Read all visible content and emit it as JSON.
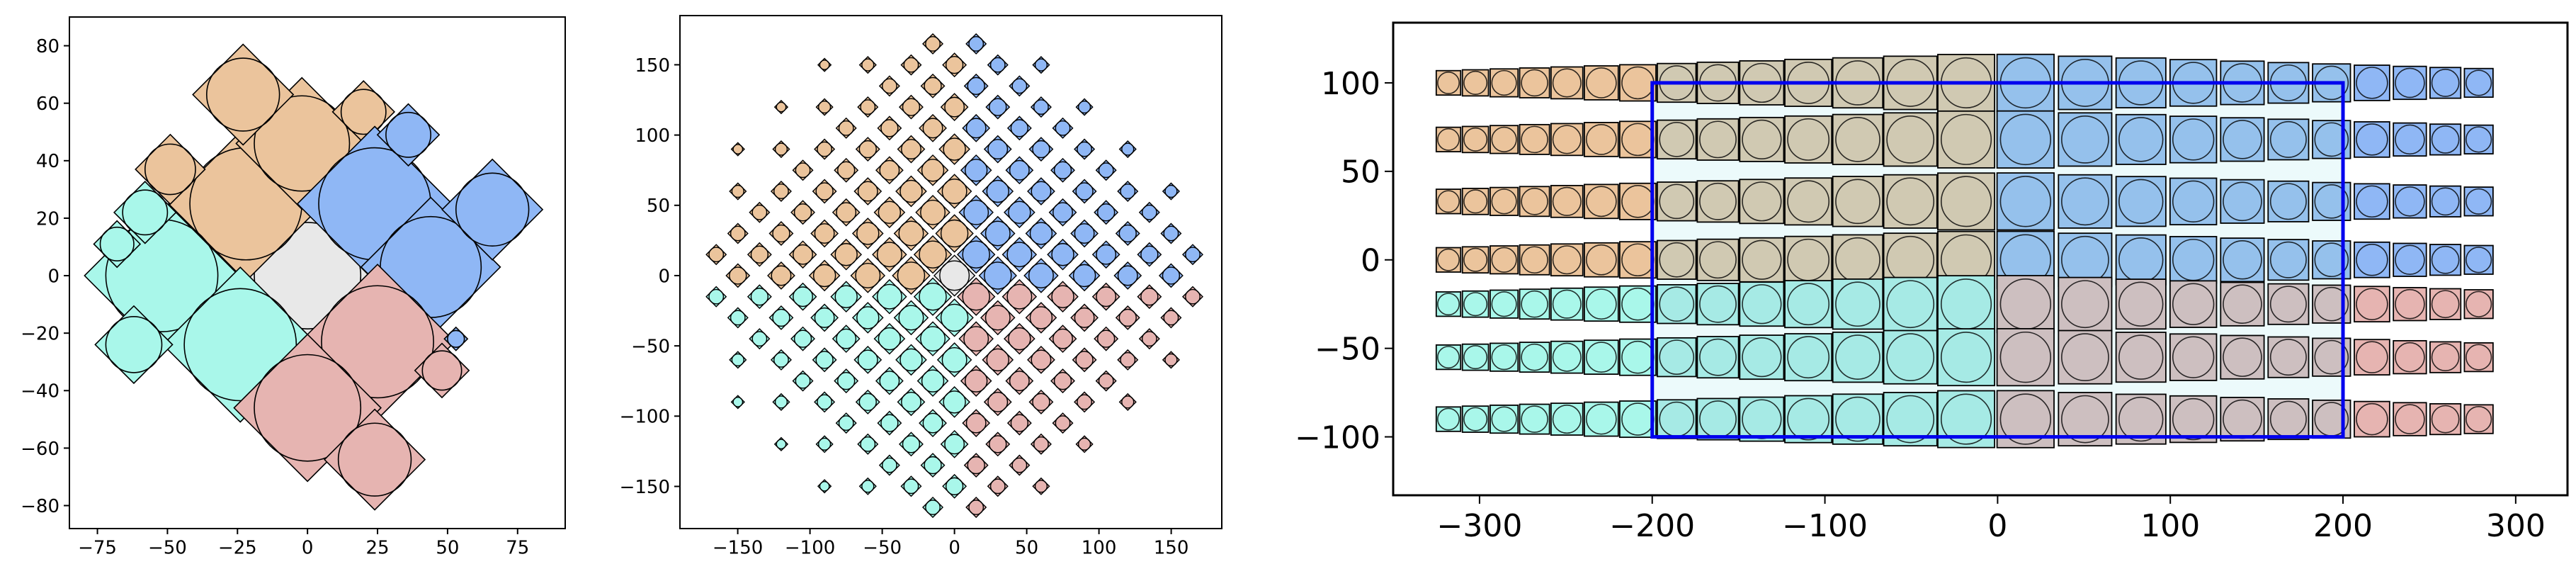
{
  "figure": {
    "background": "#ffffff",
    "colors": {
      "orange": "#ebc49c",
      "blue": "#8fb7f5",
      "cyan": "#a9f7ea",
      "red": "#e6b4b1",
      "center": "#e8e8e8",
      "overlay_rect": "#0000ee",
      "overlay_fill": "#d9f5f7",
      "outline": "#000000"
    }
  },
  "chart_data": [
    {
      "type": "scatter",
      "title": "",
      "xlabel": "",
      "ylabel": "",
      "xlim": [
        -85,
        92
      ],
      "ylim": [
        -88,
        90
      ],
      "xticks": [
        -75,
        -50,
        -25,
        0,
        25,
        50,
        75
      ],
      "yticks": [
        -80,
        -60,
        -40,
        -20,
        0,
        20,
        40,
        60,
        80
      ],
      "xtick_labels": [
        "−75",
        "−50",
        "−25",
        "0",
        "25",
        "50",
        "75"
      ],
      "ytick_labels": [
        "−80",
        "−60",
        "−40",
        "−20",
        "0",
        "20",
        "40",
        "60",
        "80"
      ],
      "grid": false,
      "marker": "diamond-with-inscribed-circle",
      "points": [
        {
          "x": 0,
          "y": 0,
          "r": 19,
          "color": "center"
        },
        {
          "x": -22,
          "y": 25,
          "r": 20,
          "color": "orange"
        },
        {
          "x": -2,
          "y": 46,
          "r": 17,
          "color": "orange"
        },
        {
          "x": -23,
          "y": 63,
          "r": 13,
          "color": "orange"
        },
        {
          "x": -49,
          "y": 37,
          "r": 9,
          "color": "orange"
        },
        {
          "x": 20,
          "y": 57,
          "r": 8,
          "color": "orange"
        },
        {
          "x": 24,
          "y": 25,
          "r": 20,
          "color": "blue"
        },
        {
          "x": 44,
          "y": 3,
          "r": 18,
          "color": "blue"
        },
        {
          "x": 66,
          "y": 23,
          "r": 13,
          "color": "blue"
        },
        {
          "x": 36,
          "y": 49,
          "r": 8,
          "color": "blue"
        },
        {
          "x": -52,
          "y": 0,
          "r": 20,
          "color": "cyan"
        },
        {
          "x": -24,
          "y": -24,
          "r": 20,
          "color": "cyan"
        },
        {
          "x": -58,
          "y": 22,
          "r": 8,
          "color": "cyan"
        },
        {
          "x": -68,
          "y": 11,
          "r": 6,
          "color": "cyan"
        },
        {
          "x": -62,
          "y": -24,
          "r": 10,
          "color": "cyan"
        },
        {
          "x": 25,
          "y": -23,
          "r": 20,
          "color": "red"
        },
        {
          "x": 0,
          "y": -46,
          "r": 19,
          "color": "red"
        },
        {
          "x": 24,
          "y": -64,
          "r": 13,
          "color": "red"
        },
        {
          "x": 48,
          "y": -33,
          "r": 7,
          "color": "red"
        },
        {
          "x": 53,
          "y": -22,
          "r": 3,
          "color": "blue"
        }
      ]
    },
    {
      "type": "scatter",
      "title": "",
      "xlabel": "",
      "ylabel": "",
      "xlim": [
        -190,
        185
      ],
      "ylim": [
        -180,
        185
      ],
      "xticks": [
        -150,
        -100,
        -50,
        0,
        50,
        100,
        150
      ],
      "yticks": [
        -150,
        -100,
        -50,
        0,
        50,
        100,
        150
      ],
      "xtick_labels": [
        "−150",
        "−100",
        "−50",
        "0",
        "50",
        "100",
        "150"
      ],
      "ytick_labels": [
        "−150",
        "−100",
        "−50",
        "0",
        "50",
        "100",
        "150"
      ],
      "grid": false,
      "marker": "diamond-with-inscribed-circle",
      "layout": "rotated grid of cells, colored by quadrant",
      "quadrants": {
        "upper_left": "orange",
        "upper_right": "blue",
        "lower_left": "cyan",
        "lower_right": "red",
        "center": "center"
      },
      "extent": {
        "u_range": [
          -8,
          7
        ],
        "v_range": [
          -7,
          8
        ],
        "cell_size": 21.2
      }
    },
    {
      "type": "scatter",
      "title": "",
      "xlabel": "",
      "ylabel": "",
      "xlim": [
        -350,
        330
      ],
      "ylim": [
        -133,
        134
      ],
      "xticks": [
        -300,
        -200,
        -100,
        0,
        100,
        200,
        300
      ],
      "yticks": [
        -100,
        -50,
        0,
        50,
        100
      ],
      "xtick_labels": [
        "−300",
        "−200",
        "−100",
        "0",
        "100",
        "200",
        "300"
      ],
      "ytick_labels": [
        "−100",
        "−50",
        "0",
        "50",
        "100"
      ],
      "grid": false,
      "marker": "square-with-inscribed-circle",
      "layout": "horizontal rows of squares, colored by quadrant, blended inside rectangle",
      "rectangle": {
        "x0": -200,
        "x1": 200,
        "y0": -100,
        "y1": 100
      },
      "rows": [
        100,
        68,
        33,
        0,
        -25,
        -55,
        -90
      ],
      "quadrants": {
        "upper_left": "orange",
        "upper_right": "blue",
        "lower_left": "cyan",
        "lower_right": "red"
      }
    }
  ]
}
